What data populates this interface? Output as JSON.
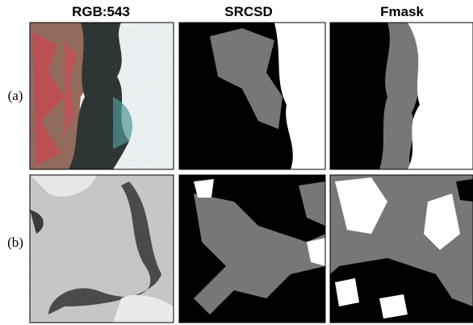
{
  "columns": [
    "RGB:543",
    "SRCSD",
    "Fmask"
  ],
  "rows": [
    "(a)",
    "(b)"
  ]
}
